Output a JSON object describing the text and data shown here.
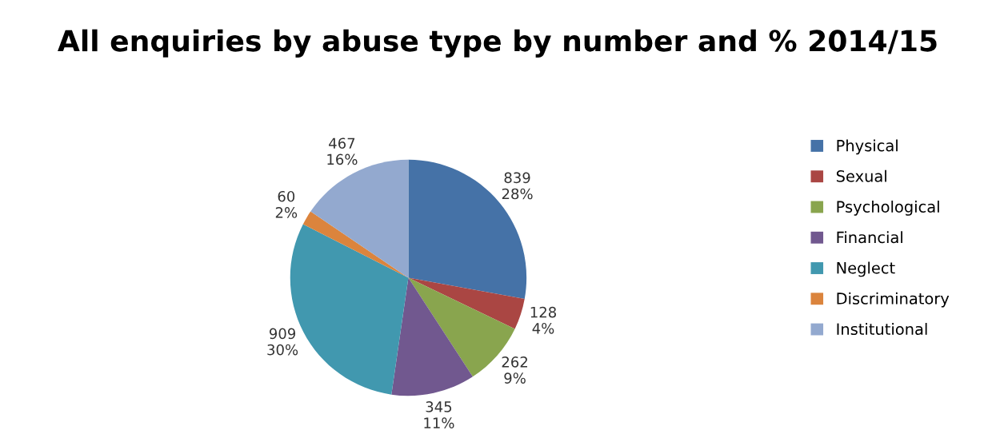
{
  "chart_data": {
    "type": "pie",
    "title": "All enquiries by abuse type by number and % 2014/15",
    "categories": [
      "Physical",
      "Sexual",
      "Psychological",
      "Financial",
      "Neglect",
      "Discriminatory",
      "Institutional"
    ],
    "values": [
      839,
      128,
      262,
      345,
      909,
      60,
      467
    ],
    "value_labels": [
      "839\n28%",
      "128\n4%",
      "262\n9%",
      "345\n11%",
      "909\n30%",
      "60\n2%",
      "467\n16%"
    ],
    "colors": [
      "#4572a7",
      "#aa4643",
      "#89a54e",
      "#71588f",
      "#4198af",
      "#db843d",
      "#93a9cf"
    ],
    "legend": "right"
  }
}
